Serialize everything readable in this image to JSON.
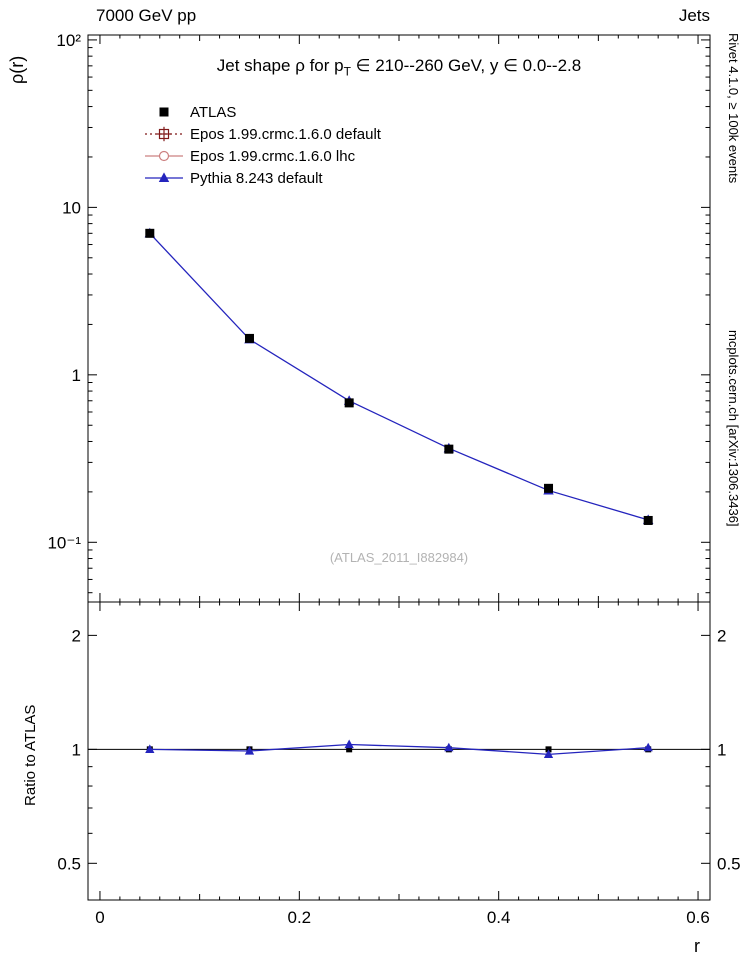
{
  "header": {
    "left": "7000 GeV pp",
    "right": "Jets"
  },
  "side_notes": {
    "top_right": "Rivet 4.1.0, ≥ 100k events",
    "bottom_right": "mcplots.cern.ch [arXiv:1306.3436]"
  },
  "watermark": "(ATLAS_2011_I882984)",
  "title": {
    "pre": "Jet shape  ρ for p",
    "sub": "T",
    "post": " ∈ 210--260 GeV, y  ∈ 0.0--2.8"
  },
  "axes": {
    "main": {
      "ylabel": "ρ(r)",
      "yticks": [
        {
          "value": 100,
          "label": "10²"
        },
        {
          "value": 10,
          "label": "10"
        },
        {
          "value": 1,
          "label": "1"
        },
        {
          "value": 0.1,
          "label": "10⁻¹"
        }
      ]
    },
    "ratio": {
      "ylabel": "Ratio to ATLAS",
      "yticks": [
        {
          "value": 2,
          "label": "2"
        },
        {
          "value": 1,
          "label": "1"
        },
        {
          "value": 0.5,
          "label": "0.5"
        }
      ]
    },
    "x": {
      "label": "r",
      "ticks": [
        {
          "value": 0,
          "label": "0"
        },
        {
          "value": 0.2,
          "label": "0.2"
        },
        {
          "value": 0.4,
          "label": "0.4"
        },
        {
          "value": 0.6,
          "label": "0.6"
        }
      ]
    }
  },
  "legend": [
    {
      "label": "ATLAS",
      "marker": "square-filled",
      "line": "none",
      "color": "#000000"
    },
    {
      "label": "Epos 1.99.crmc.1.6.0 default",
      "marker": "square-cross-open",
      "line": "dotted",
      "color": "#801919"
    },
    {
      "label": "Epos 1.99.crmc.1.6.0 lhc",
      "marker": "circle-open",
      "line": "solid",
      "color": "#cc8080"
    },
    {
      "label": "Pythia 8.243 default",
      "marker": "triangle-filled",
      "line": "solid",
      "color": "#2424bd"
    }
  ],
  "chart_data": [
    {
      "type": "line",
      "panel": "main",
      "title": "Jet shape ρ for p_T ∈ 210--260 GeV, y ∈ 0.0--2.8",
      "xlabel": "r",
      "ylabel": "ρ(r)",
      "xscale": "linear",
      "yscale": "log",
      "xlim": [
        -0.012,
        0.612
      ],
      "ylim": [
        0.044,
        107
      ],
      "grid": false,
      "legend_position": "top-left",
      "x": [
        0.05,
        0.15,
        0.25,
        0.35,
        0.45,
        0.55
      ],
      "series": [
        {
          "name": "ATLAS",
          "marker": "square-filled",
          "line": "none",
          "color": "#000000",
          "values": [
            7.0,
            1.65,
            0.68,
            0.36,
            0.21,
            0.135
          ]
        },
        {
          "name": "Epos 1.99.crmc.1.6.0 default",
          "marker": "square-cross-open",
          "line": "dotted",
          "color": "#801919",
          "values": null
        },
        {
          "name": "Epos 1.99.crmc.1.6.0 lhc",
          "marker": "circle-open",
          "line": "solid",
          "color": "#cc8080",
          "values": null
        },
        {
          "name": "Pythia 8.243 default",
          "marker": "triangle-filled",
          "line": "solid",
          "color": "#2424bd",
          "values": [
            7.0,
            1.63,
            0.7,
            0.364,
            0.204,
            0.136
          ]
        }
      ]
    },
    {
      "type": "line",
      "panel": "ratio",
      "ylabel": "Ratio to ATLAS",
      "yscale": "log",
      "ylim": [
        0.4,
        2.45
      ],
      "reference_line": 1.0,
      "x": [
        0.05,
        0.15,
        0.25,
        0.35,
        0.45,
        0.55
      ],
      "series": [
        {
          "name": "ATLAS",
          "marker": "square-filled",
          "line": "none",
          "color": "#000000",
          "values": [
            1.0,
            1.0,
            1.0,
            1.0,
            1.0,
            1.0
          ]
        },
        {
          "name": "Pythia 8.243 default",
          "marker": "triangle-filled",
          "line": "solid",
          "color": "#2424bd",
          "values": [
            1.0,
            0.99,
            1.03,
            1.01,
            0.97,
            1.01
          ]
        }
      ]
    }
  ]
}
